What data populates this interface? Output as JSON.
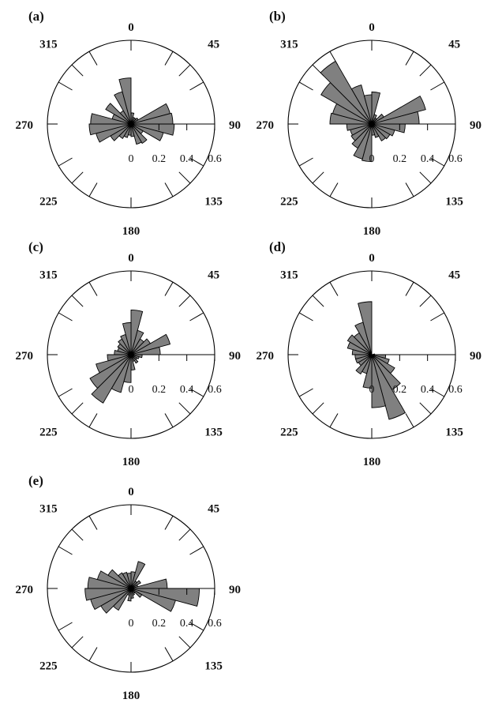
{
  "chart_data": [
    {
      "type": "rose",
      "panel_label": "(a)",
      "direction_labels": [
        "0",
        "45",
        "90",
        "135",
        "180",
        "225",
        "270",
        "315"
      ],
      "radial_ticks": [
        "0",
        "0.2",
        "0.4",
        "0.6"
      ],
      "rmax": 0.6,
      "bin_width_deg": 15,
      "bin_centers_deg": [
        7.5,
        22.5,
        37.5,
        52.5,
        67.5,
        82.5,
        97.5,
        112.5,
        127.5,
        142.5,
        157.5,
        172.5,
        187.5,
        202.5,
        217.5,
        232.5,
        247.5,
        262.5,
        277.5,
        292.5,
        307.5,
        322.5,
        337.5,
        352.5
      ],
      "values": [
        0.08,
        0.05,
        0.05,
        0.06,
        0.29,
        0.3,
        0.31,
        0.24,
        0.1,
        0.16,
        0.15,
        0.09,
        0.08,
        0.1,
        0.12,
        0.17,
        0.26,
        0.3,
        0.29,
        0.14,
        0.21,
        0.11,
        0.24,
        0.33
      ]
    },
    {
      "type": "rose",
      "panel_label": "(b)",
      "direction_labels": [
        "0",
        "45",
        "90",
        "135",
        "180",
        "225",
        "270",
        "315"
      ],
      "radial_ticks": [
        "0",
        "0.2",
        "0.4",
        "0.6"
      ],
      "rmax": 0.6,
      "bin_width_deg": 15,
      "bin_centers_deg": [
        7.5,
        22.5,
        37.5,
        52.5,
        67.5,
        82.5,
        97.5,
        112.5,
        127.5,
        142.5,
        157.5,
        172.5,
        187.5,
        202.5,
        217.5,
        232.5,
        247.5,
        262.5,
        277.5,
        292.5,
        307.5,
        322.5,
        337.5,
        352.5
      ],
      "values": [
        0.23,
        0.07,
        0.05,
        0.1,
        0.4,
        0.34,
        0.24,
        0.17,
        0.15,
        0.14,
        0.1,
        0.08,
        0.27,
        0.26,
        0.2,
        0.17,
        0.16,
        0.18,
        0.3,
        0.29,
        0.42,
        0.52,
        0.29,
        0.21
      ]
    },
    {
      "type": "rose",
      "panel_label": "(c)",
      "direction_labels": [
        "0",
        "45",
        "90",
        "135",
        "180",
        "225",
        "270",
        "315"
      ],
      "radial_ticks": [
        "0",
        "0.2",
        "0.4",
        "0.6"
      ],
      "rmax": 0.6,
      "bin_width_deg": 15,
      "bin_centers_deg": [
        7.5,
        22.5,
        37.5,
        52.5,
        67.5,
        82.5,
        97.5,
        112.5,
        127.5,
        142.5,
        157.5,
        172.5,
        187.5,
        202.5,
        217.5,
        232.5,
        247.5,
        262.5,
        277.5,
        292.5,
        307.5,
        322.5,
        337.5,
        352.5
      ],
      "values": [
        0.32,
        0.18,
        0.13,
        0.16,
        0.29,
        0.21,
        0.08,
        0.06,
        0.05,
        0.07,
        0.05,
        0.11,
        0.2,
        0.28,
        0.4,
        0.34,
        0.26,
        0.17,
        0.12,
        0.1,
        0.11,
        0.13,
        0.15,
        0.23
      ]
    },
    {
      "type": "rose",
      "panel_label": "(d)",
      "direction_labels": [
        "0",
        "45",
        "90",
        "135",
        "180",
        "225",
        "270",
        "315"
      ],
      "radial_ticks": [
        "0",
        "0.2",
        "0.4",
        "0.6"
      ],
      "rmax": 0.6,
      "bin_width_deg": 15,
      "bin_centers_deg": [
        7.5,
        22.5,
        37.5,
        52.5,
        67.5,
        82.5,
        97.5,
        112.5,
        127.5,
        142.5,
        157.5,
        172.5,
        187.5,
        202.5,
        217.5,
        232.5,
        247.5,
        262.5,
        277.5,
        292.5,
        307.5,
        322.5,
        337.5,
        352.5
      ],
      "values": [
        0.0,
        0.0,
        0.0,
        0.0,
        0.0,
        0.02,
        0.1,
        0.13,
        0.19,
        0.29,
        0.48,
        0.38,
        0.24,
        0.14,
        0.16,
        0.11,
        0.12,
        0.12,
        0.14,
        0.18,
        0.2,
        0.18,
        0.24,
        0.38
      ]
    },
    {
      "type": "rose",
      "panel_label": "(e)",
      "direction_labels": [
        "0",
        "45",
        "90",
        "135",
        "180",
        "225",
        "270",
        "315"
      ],
      "radial_ticks": [
        "0",
        "0.2",
        "0.4",
        "0.6"
      ],
      "rmax": 0.6,
      "bin_width_deg": 15,
      "bin_centers_deg": [
        7.5,
        22.5,
        37.5,
        52.5,
        67.5,
        82.5,
        97.5,
        112.5,
        127.5,
        142.5,
        157.5,
        172.5,
        187.5,
        202.5,
        217.5,
        232.5,
        247.5,
        262.5,
        277.5,
        292.5,
        307.5,
        322.5,
        337.5,
        352.5
      ],
      "values": [
        0.12,
        0.2,
        0.06,
        0.08,
        0.05,
        0.26,
        0.49,
        0.33,
        0.09,
        0.04,
        0.05,
        0.07,
        0.09,
        0.05,
        0.18,
        0.25,
        0.3,
        0.33,
        0.31,
        0.25,
        0.19,
        0.13,
        0.12,
        0.11
      ]
    }
  ]
}
